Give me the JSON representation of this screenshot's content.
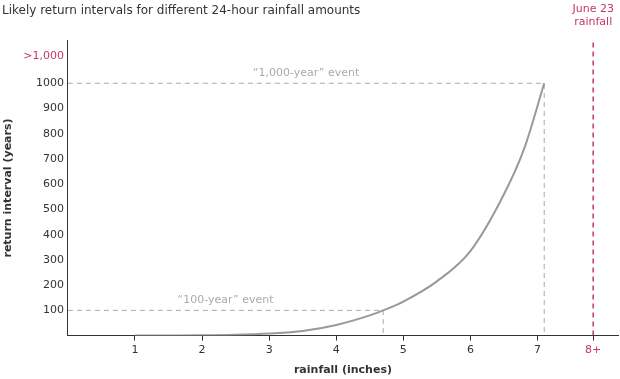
{
  "chart_data": {
    "type": "line",
    "title": "Likely return intervals for different 24-hour rainfall amounts",
    "x_label": "rainfall (inches)",
    "y_label": "return interval (years)",
    "x": [
      1.0,
      1.5,
      2.0,
      2.5,
      3.0,
      3.5,
      4.0,
      4.5,
      4.7,
      5.0,
      5.5,
      6.0,
      6.5,
      6.8,
      7.1
    ],
    "values": [
      0,
      0.5,
      1,
      3,
      8,
      18,
      42,
      80,
      100,
      135,
      215,
      335,
      560,
      740,
      1000
    ],
    "color": "#999999",
    "xlim": [
      0,
      8.2
    ],
    "ylim": [
      0,
      1170
    ],
    "xticks": [
      1,
      2,
      3,
      4,
      5,
      6,
      7,
      {
        "value": 7.83,
        "label": "8+",
        "color": "#c8336e"
      }
    ],
    "yticks": [
      100,
      200,
      300,
      400,
      500,
      600,
      700,
      800,
      900,
      1000,
      {
        "value": 1106,
        "label": ">1,000",
        "color": "#c8336e"
      }
    ],
    "grid": false,
    "annotations": [
      {
        "text": "“100-year” event",
        "x": 4.7,
        "y": 100,
        "color": "#aaaaaa",
        "line_style": "dashed"
      },
      {
        "text": "“1,000-year” event",
        "x": 7.1,
        "y": 1000,
        "color": "#aaaaaa",
        "line_style": "dashed"
      },
      {
        "text": [
          "June 23",
          "rainfall"
        ],
        "x": 7.83,
        "color": "#c8336e",
        "line_style": "dashed"
      }
    ]
  }
}
